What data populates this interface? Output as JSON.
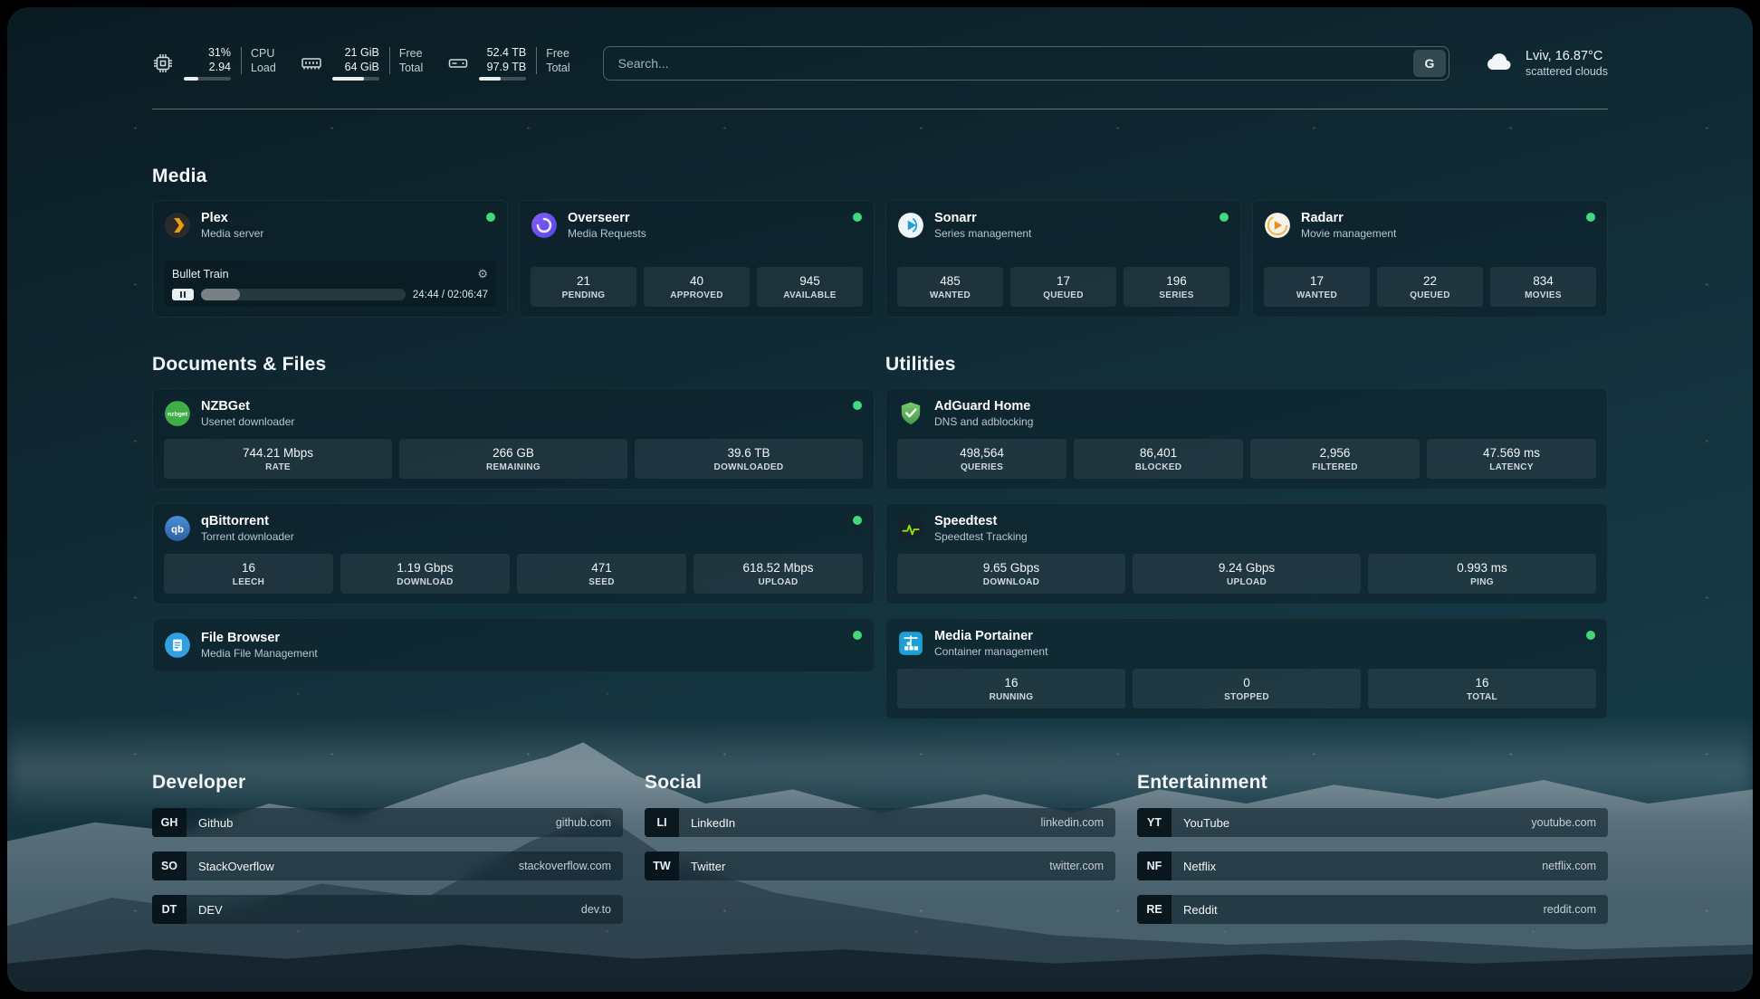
{
  "colors": {
    "status_online": "#43d97b",
    "plex_accent": "#e5a00d"
  },
  "topbar": {
    "cpu": {
      "values": [
        "31%",
        "2.94"
      ],
      "labels": [
        "CPU",
        "Load"
      ],
      "percent": 31
    },
    "memory": {
      "values": [
        "21 GiB",
        "64 GiB"
      ],
      "labels": [
        "Free",
        "Total"
      ],
      "percent": 67
    },
    "disk": {
      "values": [
        "52.4 TB",
        "97.9 TB"
      ],
      "labels": [
        "Free",
        "Total"
      ],
      "percent": 46
    },
    "search": {
      "placeholder": "Search...",
      "button_label": "G"
    },
    "weather": {
      "location": "Lviv, 16.87°C",
      "condition": "scattered clouds"
    }
  },
  "sections": {
    "media": {
      "title": "Media",
      "cards": [
        {
          "name": "Plex",
          "desc": "Media server",
          "online": true,
          "player": {
            "title": "Bullet Train",
            "time": "24:44 / 02:06:47",
            "progress_percent": 19
          }
        },
        {
          "name": "Overseerr",
          "desc": "Media Requests",
          "online": true,
          "stats": [
            {
              "value": "21",
              "label": "PENDING"
            },
            {
              "value": "40",
              "label": "APPROVED"
            },
            {
              "value": "945",
              "label": "AVAILABLE"
            }
          ]
        },
        {
          "name": "Sonarr",
          "desc": "Series management",
          "online": true,
          "stats": [
            {
              "value": "485",
              "label": "WANTED"
            },
            {
              "value": "17",
              "label": "QUEUED"
            },
            {
              "value": "196",
              "label": "SERIES"
            }
          ]
        },
        {
          "name": "Radarr",
          "desc": "Movie management",
          "online": true,
          "stats": [
            {
              "value": "17",
              "label": "WANTED"
            },
            {
              "value": "22",
              "label": "QUEUED"
            },
            {
              "value": "834",
              "label": "MOVIES"
            }
          ]
        }
      ]
    },
    "documents": {
      "title": "Documents & Files",
      "cards": [
        {
          "name": "NZBGet",
          "desc": "Usenet downloader",
          "online": true,
          "stats": [
            {
              "value": "744.21 Mbps",
              "label": "RATE"
            },
            {
              "value": "266 GB",
              "label": "REMAINING"
            },
            {
              "value": "39.6 TB",
              "label": "DOWNLOADED"
            }
          ]
        },
        {
          "name": "qBittorrent",
          "desc": "Torrent downloader",
          "online": true,
          "stats": [
            {
              "value": "16",
              "label": "LEECH"
            },
            {
              "value": "1.19 Gbps",
              "label": "DOWNLOAD"
            },
            {
              "value": "471",
              "label": "SEED"
            },
            {
              "value": "618.52 Mbps",
              "label": "UPLOAD"
            }
          ]
        },
        {
          "name": "File Browser",
          "desc": "Media File Management",
          "online": true,
          "stats": []
        }
      ]
    },
    "utilities": {
      "title": "Utilities",
      "cards": [
        {
          "name": "AdGuard Home",
          "desc": "DNS and adblocking",
          "online": false,
          "stats": [
            {
              "value": "498,564",
              "label": "QUERIES"
            },
            {
              "value": "86,401",
              "label": "BLOCKED"
            },
            {
              "value": "2,956",
              "label": "FILTERED"
            },
            {
              "value": "47.569 ms",
              "label": "LATENCY"
            }
          ]
        },
        {
          "name": "Speedtest",
          "desc": "Speedtest Tracking",
          "online": false,
          "stats": [
            {
              "value": "9.65 Gbps",
              "label": "DOWNLOAD"
            },
            {
              "value": "9.24 Gbps",
              "label": "UPLOAD"
            },
            {
              "value": "0.993 ms",
              "label": "PING"
            }
          ]
        },
        {
          "name": "Media Portainer",
          "desc": "Container management",
          "online": true,
          "stats": [
            {
              "value": "16",
              "label": "RUNNING"
            },
            {
              "value": "0",
              "label": "STOPPED"
            },
            {
              "value": "16",
              "label": "TOTAL"
            }
          ]
        }
      ]
    }
  },
  "bookmarks": {
    "groups": [
      {
        "title": "Developer",
        "items": [
          {
            "abbr": "GH",
            "name": "Github",
            "url": "github.com"
          },
          {
            "abbr": "SO",
            "name": "StackOverflow",
            "url": "stackoverflow.com"
          },
          {
            "abbr": "DT",
            "name": "DEV",
            "url": "dev.to"
          }
        ]
      },
      {
        "title": "Social",
        "items": [
          {
            "abbr": "LI",
            "name": "LinkedIn",
            "url": "linkedin.com"
          },
          {
            "abbr": "TW",
            "name": "Twitter",
            "url": "twitter.com"
          }
        ]
      },
      {
        "title": "Entertainment",
        "items": [
          {
            "abbr": "YT",
            "name": "YouTube",
            "url": "youtube.com"
          },
          {
            "abbr": "NF",
            "name": "Netflix",
            "url": "netflix.com"
          },
          {
            "abbr": "RE",
            "name": "Reddit",
            "url": "reddit.com"
          }
        ]
      }
    ]
  }
}
